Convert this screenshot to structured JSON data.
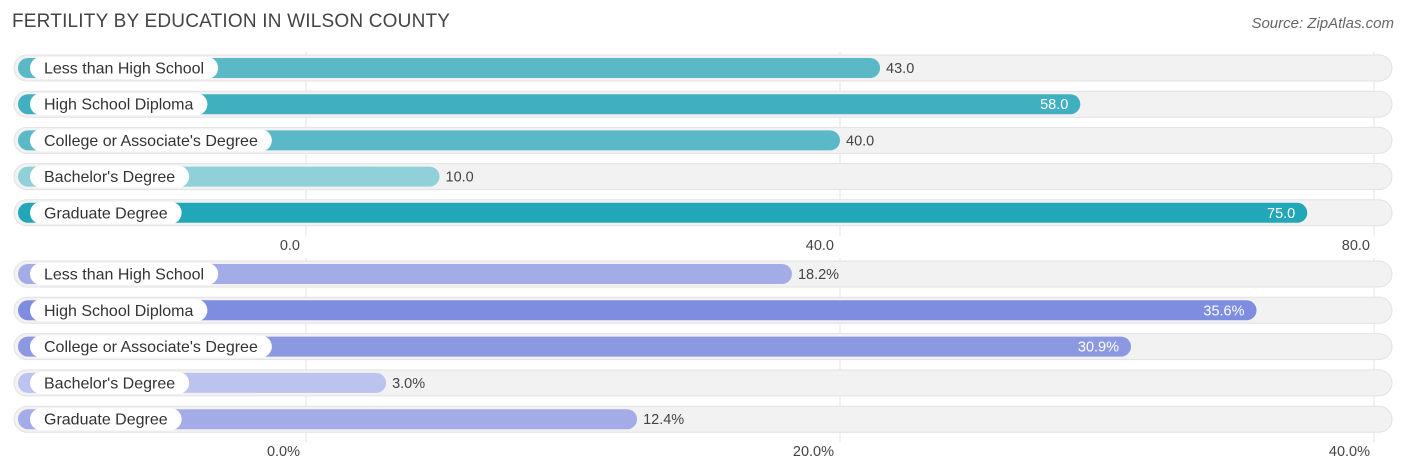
{
  "title": "FERTILITY BY EDUCATION IN WILSON COUNTY",
  "source": "Source: ZipAtlas.com",
  "chart_data": [
    {
      "type": "bar",
      "orientation": "horizontal",
      "categories": [
        "Less than High School",
        "High School Diploma",
        "College or Associate's Degree",
        "Bachelor's Degree",
        "Graduate Degree"
      ],
      "values": [
        43.0,
        58.0,
        40.0,
        10.0,
        75.0
      ],
      "value_labels": [
        "43.0",
        "58.0",
        "40.0",
        "10.0",
        "75.0"
      ],
      "xlim": [
        0,
        80
      ],
      "ticks": [
        0,
        40,
        80
      ],
      "tick_labels": [
        "0.0",
        "40.0",
        "80.0"
      ],
      "colors": [
        "#5bb8c6",
        "#40b0c0",
        "#5bb8c6",
        "#8fd0d9",
        "#22a7b8"
      ],
      "grid": true
    },
    {
      "type": "bar",
      "orientation": "horizontal",
      "categories": [
        "Less than High School",
        "High School Diploma",
        "College or Associate's Degree",
        "Bachelor's Degree",
        "Graduate Degree"
      ],
      "values": [
        18.2,
        35.6,
        30.9,
        3.0,
        12.4
      ],
      "value_labels": [
        "18.2%",
        "35.6%",
        "30.9%",
        "3.0%",
        "12.4%"
      ],
      "xlim": [
        0,
        40
      ],
      "ticks": [
        0,
        20,
        40
      ],
      "tick_labels": [
        "0.0%",
        "20.0%",
        "40.0%"
      ],
      "colors": [
        "#a3ace6",
        "#7e8ddf",
        "#8c99e2",
        "#bcc3ef",
        "#a3ace6"
      ],
      "grid": true
    }
  ]
}
